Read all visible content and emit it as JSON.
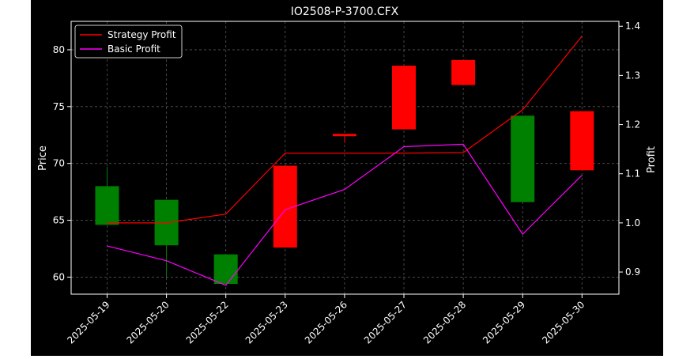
{
  "chart_data": {
    "type": "candlestick",
    "title": "IO2508-P-3700.CFX",
    "xlabel": "",
    "ylabel": "Price",
    "ylabel_right": "Profit",
    "categories": [
      "2025-05-19",
      "2025-05-20",
      "2025-05-22",
      "2025-05-23",
      "2025-05-26",
      "2025-05-27",
      "2025-05-28",
      "2025-05-29",
      "2025-05-30"
    ],
    "ylim": [
      58.5,
      82.5
    ],
    "yticks": [
      60,
      65,
      70,
      75,
      80
    ],
    "ylim_right": [
      0.855,
      1.41
    ],
    "yticks_right": [
      0.9,
      1.0,
      1.1,
      1.2,
      1.3,
      1.4
    ],
    "grid": true,
    "legend_position": "top-left",
    "candles": [
      {
        "date": "2025-05-19",
        "open": 64.6,
        "close": 68.0,
        "high": 69.7,
        "low": 64.6
      },
      {
        "date": "2025-05-20",
        "open": 62.8,
        "close": 66.8,
        "high": 66.8,
        "low": 60.0
      },
      {
        "date": "2025-05-22",
        "open": 59.4,
        "close": 62.0,
        "high": 62.0,
        "low": 59.4
      },
      {
        "date": "2025-05-23",
        "open": 69.8,
        "close": 62.6,
        "high": 69.8,
        "low": 62.6
      },
      {
        "date": "2025-05-26",
        "open": 72.6,
        "close": 72.4,
        "high": 72.6,
        "low": 71.8
      },
      {
        "date": "2025-05-27",
        "open": 78.6,
        "close": 73.0,
        "high": 78.6,
        "low": 73.0
      },
      {
        "date": "2025-05-28",
        "open": 79.1,
        "close": 76.9,
        "high": 79.1,
        "low": 76.9
      },
      {
        "date": "2025-05-29",
        "open": 66.6,
        "close": 74.2,
        "high": 74.2,
        "low": 66.6
      },
      {
        "date": "2025-05-30",
        "open": 74.6,
        "close": 69.4,
        "high": 74.6,
        "low": 69.4
      }
    ],
    "series": [
      {
        "name": "Strategy Profit",
        "color": "#ff0000",
        "values": [
          1.0,
          1.0,
          1.018,
          1.142,
          1.142,
          1.142,
          1.143,
          1.23,
          1.38
        ]
      },
      {
        "name": "Basic Profit",
        "color": "#ff00ff",
        "values": [
          0.953,
          0.923,
          0.873,
          1.027,
          1.068,
          1.155,
          1.16,
          0.977,
          1.097
        ]
      }
    ],
    "colors": {
      "up": "#008000",
      "down": "#ff0000",
      "background": "#000000",
      "axes": "#ffffff",
      "grid": "#555555"
    }
  }
}
